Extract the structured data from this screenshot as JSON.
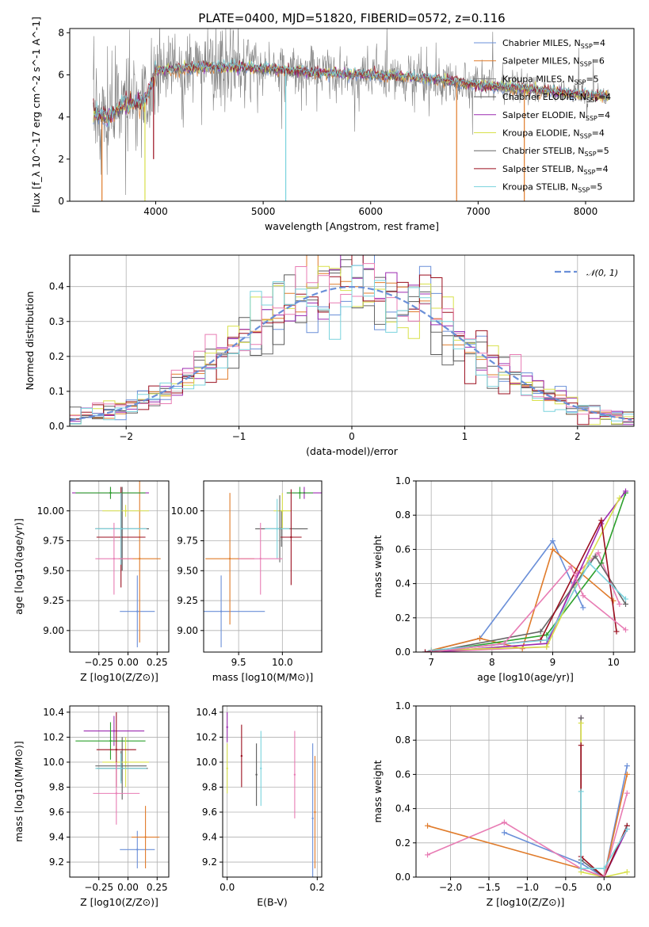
{
  "colors": [
    "#6a8fd8",
    "#e07b2a",
    "#7f7f7f",
    "#5a5a5a",
    "#9c2ab0",
    "#d8e04a",
    "#666666",
    "#9b0f1f",
    "#7ad3dd"
  ],
  "extra_colors": {
    "pink": "#e87cb4",
    "green": "#2ca02c",
    "obs": "#808080"
  },
  "chart_data": [
    {
      "id": "spectrum",
      "type": "line",
      "title": "PLATE=0400, MJD=51820, FIBERID=0572, z=0.116",
      "xlabel": "wavelength [Angstrom, rest frame]",
      "ylabel": "Flux [f_λ 10^-17 erg cm^-2 s^-1 A^-1]",
      "xlim": [
        3200,
        8450
      ],
      "ylim": [
        0,
        8.2
      ],
      "xticks": [
        4000,
        5000,
        6000,
        7000,
        8000
      ],
      "yticks": [
        0,
        2,
        4,
        6,
        8
      ],
      "legend_position": "upper-right",
      "series": [
        {
          "name": "Chabrier MILES",
          "nssp": "4"
        },
        {
          "name": "Salpeter MILES",
          "nssp": "6"
        },
        {
          "name": "Kroupa MILES",
          "nssp": "5"
        },
        {
          "name": "Chabrier ELODIE",
          "nssp": "4"
        },
        {
          "name": "Salpeter ELODIE",
          "nssp": "4"
        },
        {
          "name": "Kroupa ELODIE",
          "nssp": "4"
        },
        {
          "name": "Chabrier STELIB",
          "nssp": "5"
        },
        {
          "name": "Salpeter STELIB",
          "nssp": "4"
        },
        {
          "name": "Kroupa STELIB",
          "nssp": "5"
        }
      ],
      "model_continuum": {
        "wavelength": [
          3400,
          3550,
          3700,
          3900,
          4000,
          4300,
          4500,
          5000,
          5500,
          6000,
          6500,
          7000,
          7500,
          8000,
          8200
        ],
        "flux": [
          4.3,
          3.9,
          4.6,
          4.7,
          6.2,
          6.3,
          6.4,
          6.3,
          6.1,
          6.0,
          5.85,
          5.5,
          5.3,
          5.05,
          5.0
        ]
      },
      "model_spikes": [
        [
          3500,
          0
        ],
        [
          3900,
          0
        ],
        [
          5210,
          0
        ],
        [
          6800,
          0
        ],
        [
          7430,
          0
        ],
        [
          3980,
          2.0
        ]
      ]
    },
    {
      "id": "residuals",
      "type": "line",
      "xlabel": "(data-model)/error",
      "ylabel": "Normed distribution",
      "xlim": [
        -2.5,
        2.5
      ],
      "ylim": [
        0,
        0.49
      ],
      "xticks": [
        -2,
        -1,
        0,
        1,
        2
      ],
      "yticks": [
        0.0,
        0.1,
        0.2,
        0.3,
        0.4
      ],
      "grid": true,
      "legend_position": "upper-right",
      "reference_curve": {
        "name": "N(0,1)",
        "mean": 0,
        "sigma": 1
      },
      "bin_width": 0.1
    },
    {
      "id": "age_vs_Z",
      "type": "scatter",
      "xlabel": "Z [log10(Z/Z⊙)]",
      "ylabel": "age  [log10(age/yr)]",
      "xlim": [
        -0.5,
        0.35
      ],
      "ylim": [
        8.82,
        10.25
      ],
      "xticks": [
        -0.25,
        0.0,
        0.25
      ],
      "yticks": [
        9.0,
        9.25,
        9.5,
        9.75,
        10.0
      ],
      "grid": true,
      "points": [
        {
          "x": 0.08,
          "y": 9.16,
          "xerr": 0.15,
          "yerr": 0.3
        },
        {
          "x": 0.1,
          "y": 9.6,
          "xerr": 0.18,
          "yerr": 0.7
        },
        {
          "x": -0.05,
          "y": 9.85,
          "xerr": 0.23,
          "yerr": 0.35
        },
        {
          "x": -0.15,
          "y": 10.15,
          "xerr": 0.33,
          "yerr": 0.05
        },
        {
          "x": -0.15,
          "y": 10.15,
          "xerr": 0.3,
          "yerr": 0.05
        },
        {
          "x": -0.02,
          "y": 10.0,
          "xerr": 0.2,
          "yerr": 0.05
        },
        {
          "x": -0.06,
          "y": 9.85,
          "xerr": 0.22,
          "yerr": 0.3
        },
        {
          "x": -0.06,
          "y": 9.78,
          "xerr": 0.21,
          "yerr": 0.42
        },
        {
          "x": -0.06,
          "y": 9.85,
          "xerr": 0.22,
          "yerr": 0.3
        },
        {
          "x": -0.12,
          "y": 9.6,
          "xerr": 0.16,
          "yerr": 0.3
        }
      ]
    },
    {
      "id": "age_vs_mass",
      "type": "scatter",
      "xlabel": "mass [log10(M/M⊙)]",
      "ylabel": "",
      "xlim": [
        9.1,
        10.45
      ],
      "ylim": [
        8.82,
        10.25
      ],
      "xticks": [
        9.5,
        10.0
      ],
      "yticks": [
        9.0,
        9.25,
        9.5,
        9.75,
        10.0
      ],
      "grid": true,
      "points": [
        {
          "x": 9.3,
          "y": 9.16,
          "xerr": 0.5,
          "yerr": 0.3
        },
        {
          "x": 9.4,
          "y": 9.6,
          "xerr": 0.28,
          "yerr": 0.55
        },
        {
          "x": 9.99,
          "y": 9.85,
          "xerr": 0.3,
          "yerr": 0.15
        },
        {
          "x": 10.25,
          "y": 10.15,
          "xerr": 0.2,
          "yerr": 0.05
        },
        {
          "x": 10.2,
          "y": 10.15,
          "xerr": 0.15,
          "yerr": 0.05
        },
        {
          "x": 10.0,
          "y": 10.0,
          "xerr": 0.1,
          "yerr": 0.15
        },
        {
          "x": 9.97,
          "y": 9.85,
          "xerr": 0.17,
          "yerr": 0.28
        },
        {
          "x": 10.1,
          "y": 9.78,
          "xerr": 0.12,
          "yerr": 0.4
        },
        {
          "x": 9.94,
          "y": 9.85,
          "xerr": 0.14,
          "yerr": 0.25
        },
        {
          "x": 9.75,
          "y": 9.6,
          "xerr": 0.25,
          "yerr": 0.3
        }
      ]
    },
    {
      "id": "weight_vs_age",
      "type": "line",
      "xlabel": "age  [log10(age/yr)]",
      "ylabel": "mass weight",
      "xlim": [
        6.75,
        10.35
      ],
      "ylim": [
        0,
        1.0
      ],
      "xticks": [
        7,
        8,
        9,
        10
      ],
      "yticks": [
        0.0,
        0.2,
        0.4,
        0.6,
        0.8,
        1.0
      ],
      "grid": true,
      "series": [
        {
          "x": [
            6.9,
            7.8,
            9.0,
            9.5
          ],
          "y": [
            0.0,
            0.08,
            0.65,
            0.26
          ]
        },
        {
          "x": [
            7.0,
            7.8,
            8.5,
            9.0,
            10.0
          ],
          "y": [
            0.01,
            0.08,
            0.02,
            0.6,
            0.3
          ]
        },
        {
          "x": [
            7.0,
            8.9,
            9.4,
            9.75,
            10.1
          ],
          "y": [
            0.0,
            0.03,
            0.46,
            0.58,
            0.28
          ]
        },
        {
          "x": [
            7.0,
            8.9,
            9.8,
            10.2
          ],
          "y": [
            0.0,
            0.1,
            0.52,
            0.93
          ]
        },
        {
          "x": [
            7.0,
            8.9,
            9.8,
            10.2
          ],
          "y": [
            0.0,
            0.05,
            0.75,
            0.94
          ]
        },
        {
          "x": [
            7.0,
            8.9,
            9.6,
            10.1
          ],
          "y": [
            0.01,
            0.03,
            0.55,
            0.9
          ]
        },
        {
          "x": [
            7.0,
            8.8,
            9.7,
            10.2
          ],
          "y": [
            0.0,
            0.12,
            0.56,
            0.28
          ]
        },
        {
          "x": [
            6.9,
            8.8,
            9.8,
            10.05
          ],
          "y": [
            0.0,
            0.07,
            0.77,
            0.12
          ]
        },
        {
          "x": [
            7.0,
            8.9,
            9.6,
            10.2
          ],
          "y": [
            0.01,
            0.07,
            0.52,
            0.31
          ]
        },
        {
          "x": [
            7.0,
            8.2,
            9.3,
            9.5,
            10.2
          ],
          "y": [
            0.0,
            0.05,
            0.5,
            0.33,
            0.13
          ]
        }
      ]
    },
    {
      "id": "mass_vs_Z",
      "type": "scatter",
      "xlabel": "Z [log10(Z/Z⊙)]",
      "ylabel": "mass [log10(M/M⊙)]",
      "xlim": [
        -0.5,
        0.35
      ],
      "ylim": [
        9.08,
        10.45
      ],
      "xticks": [
        -0.25,
        0.0,
        0.25
      ],
      "yticks": [
        9.2,
        9.4,
        9.6,
        9.8,
        10.0,
        10.2,
        10.4
      ],
      "grid": true,
      "points": [
        {
          "x": 0.08,
          "y": 9.3,
          "xerr": 0.15,
          "yerr": 0.15
        },
        {
          "x": 0.15,
          "y": 9.4,
          "xerr": 0.12,
          "yerr": 0.25
        },
        {
          "x": -0.05,
          "y": 9.95,
          "xerr": 0.22,
          "yerr": 0.25
        },
        {
          "x": -0.12,
          "y": 10.25,
          "xerr": 0.26,
          "yerr": 0.12
        },
        {
          "x": -0.15,
          "y": 10.17,
          "xerr": 0.3,
          "yerr": 0.15
        },
        {
          "x": -0.02,
          "y": 10.0,
          "xerr": 0.2,
          "yerr": 0.2
        },
        {
          "x": -0.06,
          "y": 9.97,
          "xerr": 0.22,
          "yerr": 0.12
        },
        {
          "x": -0.1,
          "y": 10.1,
          "xerr": 0.17,
          "yerr": 0.3
        },
        {
          "x": -0.06,
          "y": 9.95,
          "xerr": 0.22,
          "yerr": 0.12
        },
        {
          "x": -0.1,
          "y": 9.75,
          "xerr": 0.2,
          "yerr": 0.25
        }
      ]
    },
    {
      "id": "mass_vs_EBV",
      "type": "scatter",
      "xlabel": "E(B-V)",
      "ylabel": "",
      "xlim": [
        -0.01,
        0.21
      ],
      "ylim": [
        9.08,
        10.45
      ],
      "xticks": [
        0.0,
        0.2
      ],
      "yticks": [
        9.2,
        9.4,
        9.6,
        9.8,
        10.0,
        10.2,
        10.4
      ],
      "grid": true,
      "points": [
        {
          "x": 0.19,
          "y": 9.55,
          "yerr": 0.6
        },
        {
          "x": 0.195,
          "y": 9.6,
          "yerr": 0.45
        },
        {
          "x": 0.065,
          "y": 9.9,
          "yerr": 0.25
        },
        {
          "x": 0.0,
          "y": 10.28,
          "yerr": 0.12
        },
        {
          "x": 0.0,
          "y": 9.95,
          "yerr": 0.2
        },
        {
          "x": 0.075,
          "y": 9.95,
          "yerr": 0.3
        },
        {
          "x": 0.032,
          "y": 10.05,
          "yerr": 0.25
        },
        {
          "x": 0.15,
          "y": 9.9,
          "yerr": 0.35
        }
      ]
    },
    {
      "id": "weight_vs_Z",
      "type": "line",
      "xlabel": "Z [log10(Z/Z⊙)]",
      "ylabel": "mass weight",
      "xlim": [
        -2.45,
        0.4
      ],
      "ylim": [
        0,
        1.0
      ],
      "xticks": [
        -2.0,
        -1.5,
        -1.0,
        -0.5,
        0.0
      ],
      "yticks": [
        0.0,
        0.2,
        0.4,
        0.6,
        0.8,
        1.0
      ],
      "grid": true,
      "series": [
        {
          "x": [
            -1.3,
            -0.3,
            0.0,
            0.3
          ],
          "y": [
            0.26,
            0.08,
            0.0,
            0.65
          ]
        },
        {
          "x": [
            -2.3,
            -0.3,
            0.0,
            0.3
          ],
          "y": [
            0.3,
            0.05,
            0.0,
            0.6
          ]
        },
        {
          "x": [
            -0.3,
            -0.3,
            0.0,
            0.3
          ],
          "y": [
            0.93,
            0.05,
            0.0,
            0.28
          ]
        },
        {
          "x": [
            -0.3,
            -0.3,
            0.0,
            0.3
          ],
          "y": [
            0.93,
            0.1,
            0.0,
            0.3
          ]
        },
        {
          "x": [
            -0.3,
            -0.3,
            0.0,
            0.3
          ],
          "y": [
            0.9,
            0.03,
            0.0,
            0.03
          ]
        },
        {
          "x": [
            -0.3,
            -0.3,
            0.0,
            0.3
          ],
          "y": [
            0.77,
            0.12,
            0.0,
            0.3
          ]
        },
        {
          "x": [
            -2.3,
            -1.3,
            -0.3,
            0.0,
            0.3
          ],
          "y": [
            0.13,
            0.32,
            0.05,
            0.0,
            0.49
          ]
        },
        {
          "x": [
            -0.3,
            -0.3,
            0.0,
            0.3
          ],
          "y": [
            0.5,
            0.05,
            0.05,
            0.28
          ]
        }
      ]
    }
  ]
}
